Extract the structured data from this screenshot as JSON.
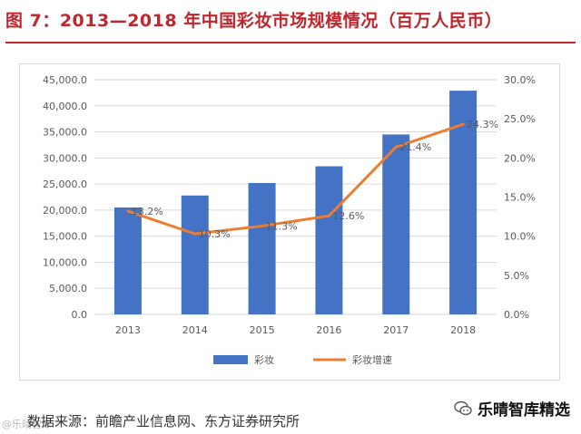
{
  "figure": {
    "title": "图 7：2013—2018 年中国彩妆市场规模情况（百万人民币）",
    "source": "数据来源：前瞻产业信息网、东方证券研究所",
    "watermark": "@乐晴智库",
    "brand": "乐晴智库精选"
  },
  "colors": {
    "title": "#c0272d",
    "bar": "#4472c4",
    "line": "#ed7d31",
    "grid": "#d9d9d9",
    "axis_text": "#595959"
  },
  "chart_data": {
    "type": "bar",
    "categories": [
      "2013",
      "2014",
      "2015",
      "2016",
      "2017",
      "2018"
    ],
    "series": [
      {
        "name": "彩妆",
        "type": "bar",
        "axis": "left",
        "values": [
          20500,
          22800,
          25200,
          28400,
          34500,
          42900
        ]
      },
      {
        "name": "彩妆增速",
        "type": "line",
        "axis": "right",
        "values": [
          13.2,
          10.3,
          11.3,
          12.6,
          21.4,
          24.3
        ],
        "labels": [
          "13.2%",
          "10.3%",
          "11.3%",
          "12.6%",
          "21.4%",
          "24.3%"
        ]
      }
    ],
    "y_left": {
      "min": 0,
      "max": 45000,
      "step": 5000,
      "ticks": [
        "0.0",
        "5,000.0",
        "10,000.0",
        "15,000.0",
        "20,000.0",
        "25,000.0",
        "30,000.0",
        "35,000.0",
        "40,000.0",
        "45,000.0"
      ]
    },
    "y_right": {
      "min": 0,
      "max": 30,
      "step": 5,
      "ticks": [
        "0.0%",
        "5.0%",
        "10.0%",
        "15.0%",
        "20.0%",
        "25.0%",
        "30.0%"
      ]
    },
    "grid": true,
    "legend": "bottom-center"
  }
}
